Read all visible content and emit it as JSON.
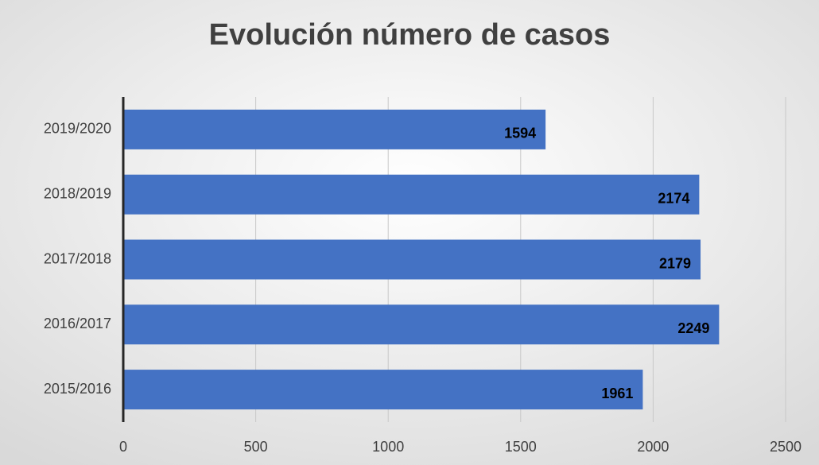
{
  "chart_data": {
    "type": "hbar",
    "title": "Evolución número de casos",
    "categories": [
      "2019/2020",
      "2018/2019",
      "2017/2018",
      "2016/2017",
      "2015/2016"
    ],
    "values": [
      1594,
      2174,
      2179,
      2249,
      1961
    ],
    "color": "#4472c4",
    "xlim": [
      0,
      2500
    ],
    "xticks": [
      0,
      500,
      1000,
      1500,
      2000,
      2500
    ],
    "grid": true
  }
}
